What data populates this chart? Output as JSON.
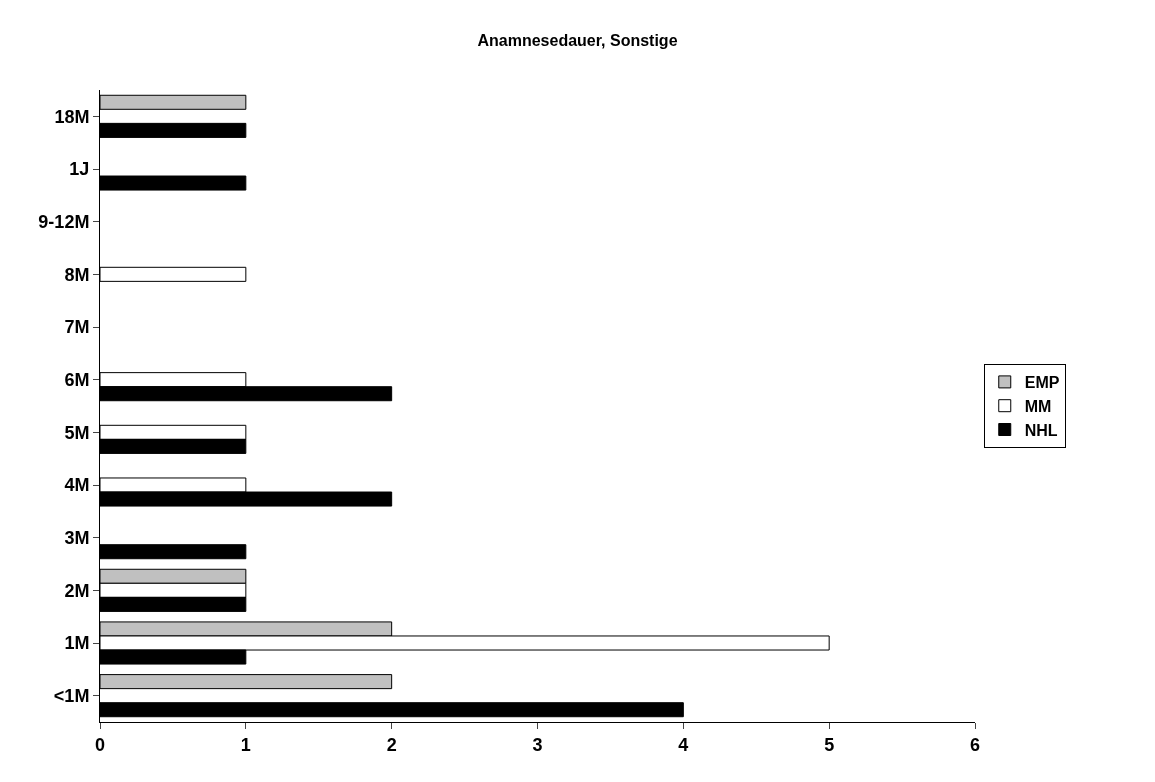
{
  "chart_data": {
    "type": "bar",
    "orientation": "horizontal",
    "title": "Anamnesedauer, Sonstige",
    "categories": [
      "18M",
      "1J",
      "9-12M",
      "8M",
      "7M",
      "6M",
      "5M",
      "4M",
      "3M",
      "2M",
      "1M",
      "<1M"
    ],
    "series": [
      {
        "name": "EMP",
        "color": "#c0c0c0",
        "values": [
          1,
          null,
          null,
          null,
          null,
          null,
          null,
          null,
          null,
          1,
          2,
          2
        ]
      },
      {
        "name": "MM",
        "color": "#ffffff",
        "values": [
          null,
          null,
          null,
          1,
          null,
          1,
          1,
          1,
          null,
          1,
          5,
          null
        ]
      },
      {
        "name": "NHL",
        "color": "#000000",
        "values": [
          1,
          1,
          null,
          null,
          null,
          2,
          1,
          2,
          1,
          1,
          1,
          4
        ]
      }
    ],
    "xlim": [
      0,
      6
    ],
    "xticks": [
      0,
      1,
      2,
      3,
      4,
      5,
      6
    ],
    "grid": false,
    "legend": "right"
  }
}
